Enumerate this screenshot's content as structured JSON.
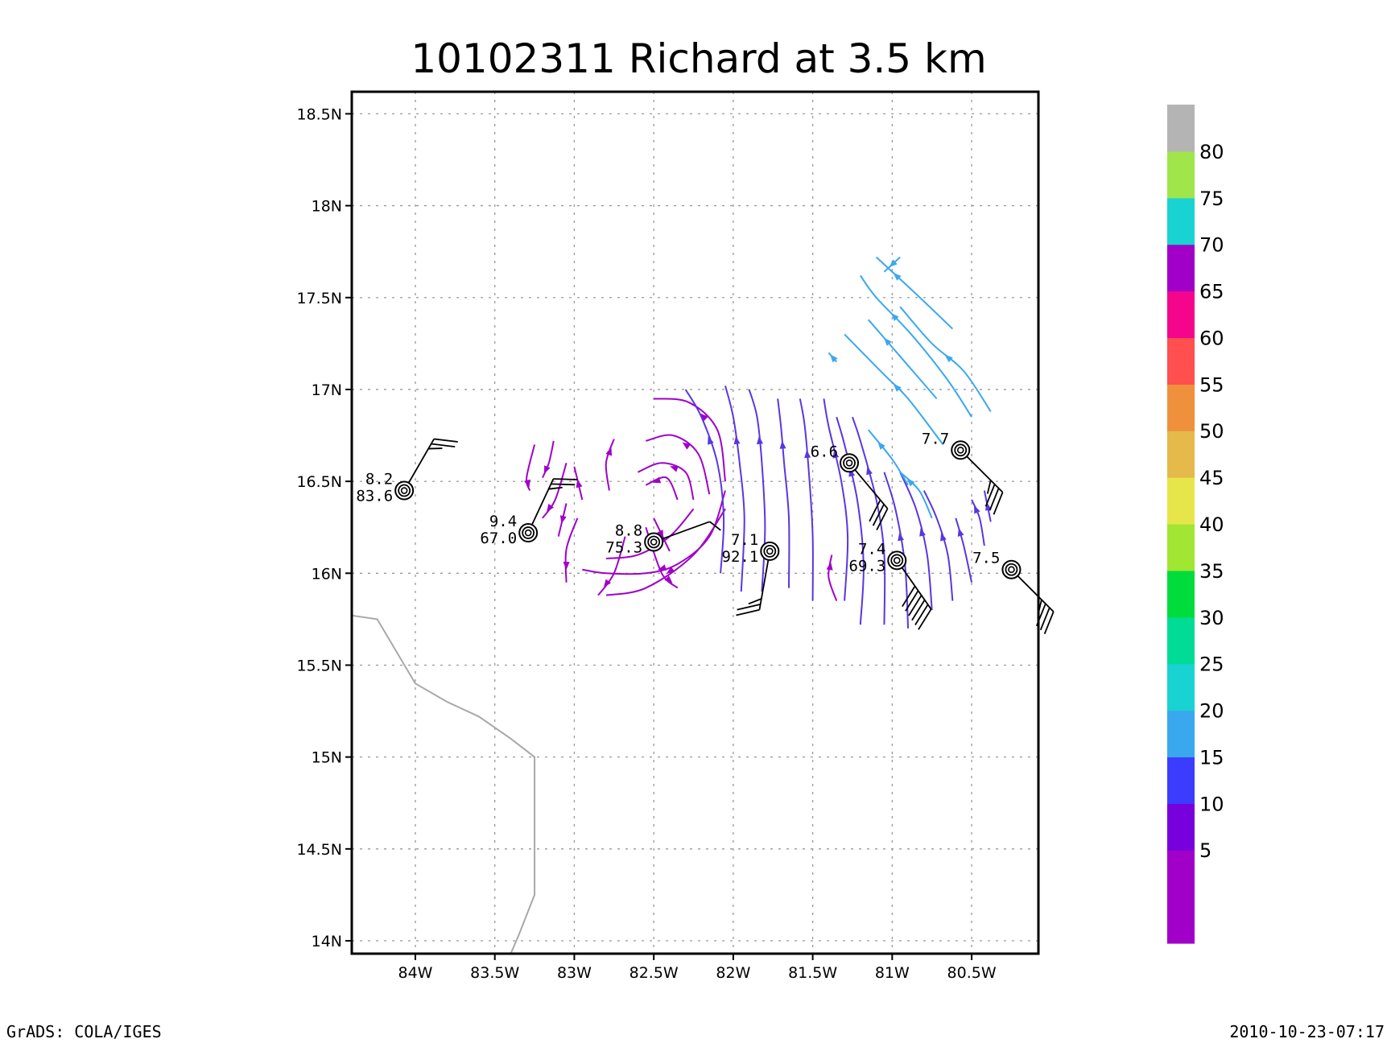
{
  "chart_data": {
    "type": "map",
    "title": "10102311 Richard at 3.5 km",
    "xlim": [
      -84.4,
      -80.08
    ],
    "ylim": [
      13.93,
      18.62
    ],
    "x_ticks": [
      {
        "value": -84.0,
        "label": "84W"
      },
      {
        "value": -83.5,
        "label": "83.5W"
      },
      {
        "value": -83.0,
        "label": "83W"
      },
      {
        "value": -82.5,
        "label": "82.5W"
      },
      {
        "value": -82.0,
        "label": "82W"
      },
      {
        "value": -81.5,
        "label": "81.5W"
      },
      {
        "value": -81.0,
        "label": "81W"
      },
      {
        "value": -80.5,
        "label": "80.5W"
      }
    ],
    "y_ticks": [
      {
        "value": 14.0,
        "label": "14N"
      },
      {
        "value": 14.5,
        "label": "14.5N"
      },
      {
        "value": 15.0,
        "label": "15N"
      },
      {
        "value": 15.5,
        "label": "15.5N"
      },
      {
        "value": 16.0,
        "label": "16N"
      },
      {
        "value": 16.5,
        "label": "16.5N"
      },
      {
        "value": 17.0,
        "label": "17N"
      },
      {
        "value": 17.5,
        "label": "17.5N"
      },
      {
        "value": 18.0,
        "label": "18N"
      },
      {
        "value": 18.5,
        "label": "18.5N"
      }
    ],
    "grid": true,
    "coastline": [
      [
        -84.4,
        15.77
      ],
      [
        -84.24,
        15.75
      ],
      [
        -84.0,
        15.4
      ],
      [
        -83.8,
        15.3
      ],
      [
        -83.6,
        15.22
      ],
      [
        -83.4,
        15.1
      ],
      [
        -83.25,
        15.0
      ],
      [
        -83.25,
        14.25
      ],
      [
        -83.35,
        14.03
      ],
      [
        -83.4,
        13.93
      ]
    ],
    "observations": [
      {
        "lon": -84.07,
        "lat": 16.45,
        "top_label": "8.2",
        "bottom_label": "83.6",
        "barb_dir": 30,
        "barb_speed": 25
      },
      {
        "lon": -83.29,
        "lat": 16.22,
        "top_label": "9.4",
        "bottom_label": "67.0",
        "barb_dir": 25,
        "barb_speed": 25
      },
      {
        "lon": -82.5,
        "lat": 16.17,
        "top_label": "8.8",
        "bottom_label": "75.3",
        "barb_dir": 70,
        "barb_speed": 5
      },
      {
        "lon": -81.77,
        "lat": 16.12,
        "top_label": "7.1",
        "bottom_label": "92.1",
        "barb_dir": 190,
        "barb_speed": 25
      },
      {
        "lon": -81.27,
        "lat": 16.6,
        "top_label": "6.6",
        "bottom_label": "",
        "barb_dir": 140,
        "barb_speed": 30
      },
      {
        "lon": -80.97,
        "lat": 16.07,
        "top_label": "7.4",
        "bottom_label": "69.3",
        "barb_dir": 145,
        "barb_speed": 60
      },
      {
        "lon": -80.57,
        "lat": 16.67,
        "top_label": "7.7",
        "bottom_label": "",
        "barb_dir": 135,
        "barb_speed": 35
      },
      {
        "lon": -80.25,
        "lat": 16.02,
        "top_label": "7.5",
        "bottom_label": "",
        "barb_dir": 135,
        "barb_speed": 35
      }
    ],
    "streamlines": [
      {
        "color": "#a000c8",
        "points": [
          [
            -82.05,
            16.5
          ],
          [
            -82.1,
            16.78
          ],
          [
            -82.28,
            16.93
          ],
          [
            -82.5,
            16.95
          ]
        ]
      },
      {
        "color": "#a000c8",
        "points": [
          [
            -82.15,
            16.43
          ],
          [
            -82.22,
            16.65
          ],
          [
            -82.38,
            16.75
          ],
          [
            -82.55,
            16.72
          ]
        ]
      },
      {
        "color": "#a000c8",
        "points": [
          [
            -82.25,
            16.4
          ],
          [
            -82.3,
            16.55
          ],
          [
            -82.45,
            16.6
          ],
          [
            -82.6,
            16.55
          ]
        ]
      },
      {
        "color": "#a000c8",
        "points": [
          [
            -82.35,
            16.4
          ],
          [
            -82.42,
            16.52
          ],
          [
            -82.55,
            16.48
          ]
        ]
      },
      {
        "color": "#a000c8",
        "points": [
          [
            -82.05,
            16.45
          ],
          [
            -82.15,
            16.2
          ],
          [
            -82.35,
            16.05
          ],
          [
            -82.55,
            16.0
          ],
          [
            -82.8,
            16.0
          ],
          [
            -82.95,
            16.02
          ]
        ]
      },
      {
        "color": "#a000c8",
        "points": [
          [
            -82.25,
            16.35
          ],
          [
            -82.4,
            16.2
          ],
          [
            -82.6,
            16.1
          ],
          [
            -82.8,
            16.08
          ]
        ]
      },
      {
        "color": "#a000c8",
        "points": [
          [
            -82.05,
            16.35
          ],
          [
            -82.25,
            16.1
          ],
          [
            -82.55,
            15.92
          ],
          [
            -82.8,
            15.88
          ]
        ]
      },
      {
        "color": "#a000c8",
        "points": [
          [
            -82.68,
            16.2
          ],
          [
            -82.75,
            16.0
          ],
          [
            -82.85,
            15.88
          ]
        ]
      },
      {
        "color": "#a000c8",
        "points": [
          [
            -82.78,
            16.45
          ],
          [
            -82.8,
            16.6
          ],
          [
            -82.75,
            16.73
          ]
        ]
      },
      {
        "color": "#a000c8",
        "points": [
          [
            -82.95,
            16.4
          ],
          [
            -83.0,
            16.58
          ]
        ]
      },
      {
        "color": "#a000c8",
        "points": [
          [
            -83.05,
            16.6
          ],
          [
            -83.12,
            16.4
          ],
          [
            -83.2,
            16.3
          ]
        ]
      },
      {
        "color": "#a000c8",
        "points": [
          [
            -82.98,
            16.3
          ],
          [
            -83.05,
            16.13
          ],
          [
            -83.05,
            15.95
          ]
        ]
      },
      {
        "color": "#a000c8",
        "points": [
          [
            -83.05,
            16.38
          ],
          [
            -83.1,
            16.2
          ]
        ]
      },
      {
        "color": "#a000c8",
        "points": [
          [
            -83.25,
            16.7
          ],
          [
            -83.3,
            16.52
          ],
          [
            -83.28,
            16.45
          ]
        ]
      },
      {
        "color": "#a000c8",
        "points": [
          [
            -83.13,
            16.72
          ],
          [
            -83.16,
            16.6
          ],
          [
            -83.2,
            16.52
          ]
        ]
      },
      {
        "color": "#a000c8",
        "points": [
          [
            -82.55,
            16.25
          ],
          [
            -82.45,
            16.0
          ],
          [
            -82.35,
            15.92
          ]
        ]
      },
      {
        "color": "#a000c8",
        "points": [
          [
            -82.5,
            16.3
          ],
          [
            -82.4,
            16.12
          ]
        ]
      },
      {
        "color": "#a000c8",
        "points": [
          [
            -81.35,
            15.85
          ],
          [
            -81.4,
            15.98
          ],
          [
            -81.38,
            16.1
          ]
        ]
      },
      {
        "color": "#5a36e0",
        "points": [
          [
            -82.08,
            16.0
          ],
          [
            -82.06,
            16.3
          ],
          [
            -82.1,
            16.6
          ],
          [
            -82.2,
            16.85
          ],
          [
            -82.3,
            17.0
          ]
        ]
      },
      {
        "color": "#5a36e0",
        "points": [
          [
            -81.95,
            15.9
          ],
          [
            -81.93,
            16.3
          ],
          [
            -81.96,
            16.6
          ],
          [
            -82.0,
            16.85
          ],
          [
            -82.05,
            17.02
          ]
        ]
      },
      {
        "color": "#5a36e0",
        "points": [
          [
            -81.82,
            15.9
          ],
          [
            -81.8,
            16.25
          ],
          [
            -81.82,
            16.6
          ],
          [
            -81.85,
            16.85
          ],
          [
            -81.9,
            17.0
          ]
        ]
      },
      {
        "color": "#5a36e0",
        "points": [
          [
            -81.65,
            15.92
          ],
          [
            -81.65,
            16.3
          ],
          [
            -81.68,
            16.6
          ],
          [
            -81.7,
            16.8
          ],
          [
            -81.72,
            16.95
          ]
        ]
      },
      {
        "color": "#5a36e0",
        "points": [
          [
            -81.5,
            15.85
          ],
          [
            -81.5,
            16.2
          ],
          [
            -81.52,
            16.5
          ],
          [
            -81.55,
            16.8
          ],
          [
            -81.58,
            16.95
          ]
        ]
      },
      {
        "color": "#5a36e0",
        "points": [
          [
            -81.3,
            15.85
          ],
          [
            -81.28,
            16.2
          ],
          [
            -81.32,
            16.5
          ],
          [
            -81.4,
            16.8
          ],
          [
            -81.43,
            16.95
          ]
        ]
      },
      {
        "color": "#5a36e0",
        "points": [
          [
            -81.2,
            15.72
          ],
          [
            -81.18,
            16.05
          ],
          [
            -81.22,
            16.4
          ],
          [
            -81.3,
            16.7
          ],
          [
            -81.35,
            16.85
          ]
        ]
      },
      {
        "color": "#5a36e0",
        "points": [
          [
            -81.05,
            15.72
          ],
          [
            -81.05,
            16.1
          ],
          [
            -81.1,
            16.4
          ],
          [
            -81.2,
            16.72
          ],
          [
            -81.25,
            16.85
          ]
        ]
      },
      {
        "color": "#5a36e0",
        "points": [
          [
            -80.9,
            15.7
          ],
          [
            -80.92,
            16.05
          ],
          [
            -80.98,
            16.35
          ],
          [
            -81.05,
            16.55
          ]
        ]
      },
      {
        "color": "#5a36e0",
        "points": [
          [
            -80.75,
            15.8
          ],
          [
            -80.78,
            16.1
          ],
          [
            -80.85,
            16.35
          ],
          [
            -80.95,
            16.55
          ]
        ]
      },
      {
        "color": "#5a36e0",
        "points": [
          [
            -80.62,
            15.85
          ],
          [
            -80.65,
            16.1
          ],
          [
            -80.72,
            16.3
          ],
          [
            -80.8,
            16.45
          ]
        ]
      },
      {
        "color": "#5a36e0",
        "points": [
          [
            -80.5,
            15.95
          ],
          [
            -80.55,
            16.15
          ],
          [
            -80.6,
            16.3
          ]
        ]
      },
      {
        "color": "#5a36e0",
        "points": [
          [
            -80.42,
            16.15
          ],
          [
            -80.45,
            16.3
          ],
          [
            -80.5,
            16.4
          ]
        ]
      },
      {
        "color": "#5a36e0",
        "points": [
          [
            -80.38,
            16.28
          ],
          [
            -80.42,
            16.45
          ]
        ]
      },
      {
        "color": "#3aa8ee",
        "points": [
          [
            -80.5,
            16.85
          ],
          [
            -80.65,
            17.05
          ],
          [
            -80.88,
            17.3
          ],
          [
            -81.1,
            17.5
          ],
          [
            -81.2,
            17.62
          ]
        ]
      },
      {
        "color": "#3aa8ee",
        "points": [
          [
            -80.38,
            16.88
          ],
          [
            -80.55,
            17.1
          ],
          [
            -80.75,
            17.25
          ],
          [
            -80.95,
            17.45
          ]
        ]
      },
      {
        "color": "#3aa8ee",
        "points": [
          [
            -80.72,
            16.95
          ],
          [
            -80.92,
            17.15
          ],
          [
            -81.15,
            17.38
          ]
        ]
      },
      {
        "color": "#3aa8ee",
        "points": [
          [
            -80.62,
            17.33
          ],
          [
            -80.85,
            17.52
          ],
          [
            -81.1,
            17.72
          ]
        ]
      },
      {
        "color": "#3aa8ee",
        "points": [
          [
            -80.68,
            16.7
          ],
          [
            -80.9,
            16.95
          ],
          [
            -81.05,
            17.08
          ],
          [
            -81.3,
            17.3
          ]
        ]
      },
      {
        "color": "#3aa8ee",
        "points": [
          [
            -80.9,
            16.48
          ],
          [
            -81.0,
            16.62
          ],
          [
            -81.15,
            16.78
          ]
        ]
      },
      {
        "color": "#3aa8ee",
        "points": [
          [
            -80.75,
            16.3
          ],
          [
            -80.83,
            16.45
          ],
          [
            -80.95,
            16.55
          ]
        ]
      },
      {
        "color": "#3aa8ee",
        "points": [
          [
            -81.35,
            17.15
          ],
          [
            -81.4,
            17.2
          ]
        ]
      },
      {
        "color": "#3aa8ee",
        "points": [
          [
            -80.95,
            17.72
          ],
          [
            -81.05,
            17.64
          ]
        ]
      }
    ],
    "colorbar": {
      "segments": [
        {
          "color": "#a000c8",
          "label": ""
        },
        {
          "color": "#a000c8",
          "label": "5"
        },
        {
          "color": "#7800dc",
          "label": "10"
        },
        {
          "color": "#3c3cff",
          "label": "15"
        },
        {
          "color": "#3aa8ee",
          "label": "20"
        },
        {
          "color": "#19d2d2",
          "label": "25"
        },
        {
          "color": "#00dc96",
          "label": "30"
        },
        {
          "color": "#00dc3c",
          "label": "35"
        },
        {
          "color": "#a0e632",
          "label": "40"
        },
        {
          "color": "#e6e64b",
          "label": "45"
        },
        {
          "color": "#e6b94b",
          "label": "50"
        },
        {
          "color": "#ef913c",
          "label": "55"
        },
        {
          "color": "#ff4f4f",
          "label": "60"
        },
        {
          "color": "#f5058c",
          "label": "65"
        },
        {
          "color": "#a000c8",
          "label": "70"
        },
        {
          "color": "#19d2d2",
          "label": "75"
        },
        {
          "color": "#a0e64b",
          "label": "80"
        },
        {
          "color": "#b4b4b4",
          "label": ""
        }
      ]
    }
  },
  "footer": {
    "left": "GrADS: COLA/IGES",
    "right": "2010-10-23-07:17"
  }
}
